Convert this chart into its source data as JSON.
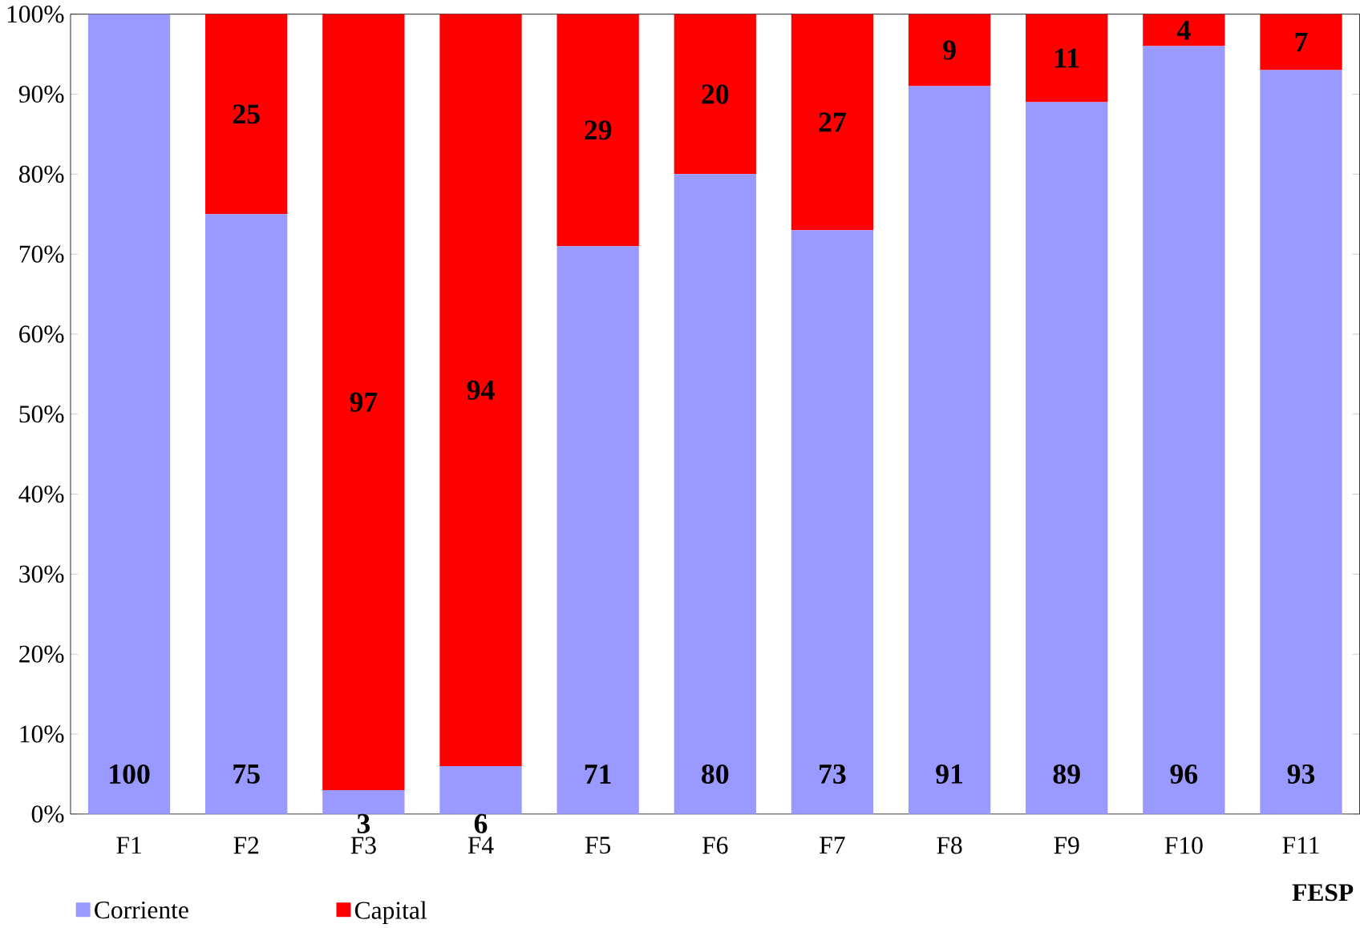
{
  "chart_data": {
    "type": "bar",
    "stacked": true,
    "categories": [
      "F1",
      "F2",
      "F3",
      "F4",
      "F5",
      "F6",
      "F7",
      "F8",
      "F9",
      "F10",
      "F11"
    ],
    "series": [
      {
        "name": "Corriente",
        "color": "#9999ff",
        "values": [
          100,
          75,
          3,
          6,
          71,
          80,
          73,
          91,
          89,
          96,
          93
        ],
        "value_labels": [
          "100",
          "75",
          "3",
          "6",
          "71",
          "80",
          "73",
          "91",
          "89",
          "96",
          "93"
        ]
      },
      {
        "name": "Capital",
        "color": "#ff0000",
        "values": [
          0,
          25,
          97,
          94,
          29,
          20,
          27,
          9,
          11,
          4,
          7
        ],
        "value_labels": [
          null,
          "25",
          "97",
          "94",
          "29",
          "20",
          "27",
          "9",
          "11",
          "4",
          "7"
        ]
      }
    ],
    "ylim": [
      0,
      100
    ],
    "yticks": [
      {
        "value": 0,
        "label": "0%"
      },
      {
        "value": 10,
        "label": "10%"
      },
      {
        "value": 20,
        "label": "20%"
      },
      {
        "value": 30,
        "label": "30%"
      },
      {
        "value": 40,
        "label": "40%"
      },
      {
        "value": 50,
        "label": "50%"
      },
      {
        "value": 60,
        "label": "60%"
      },
      {
        "value": 70,
        "label": "70%"
      },
      {
        "value": 80,
        "label": "80%"
      },
      {
        "value": 90,
        "label": "90%"
      },
      {
        "value": 100,
        "label": "100%"
      }
    ],
    "grid": false,
    "legend": "bottom",
    "annotations": [
      "FESP"
    ]
  }
}
